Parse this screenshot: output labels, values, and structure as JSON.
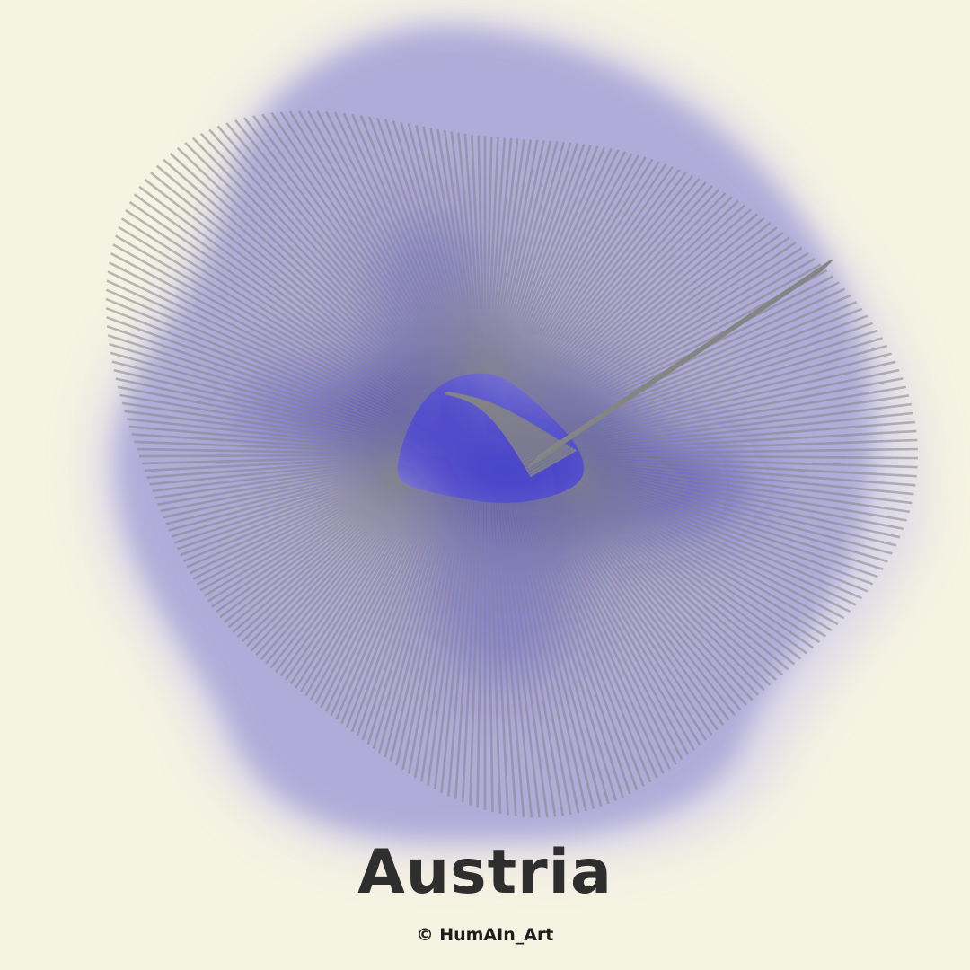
{
  "artwork": {
    "title": "Austria",
    "credit": "© HumAIn_Art",
    "colors": {
      "background": "#f5f3e2",
      "glow": "#2a25c4",
      "lines": "#858585",
      "title": "#2e2e2e"
    }
  }
}
